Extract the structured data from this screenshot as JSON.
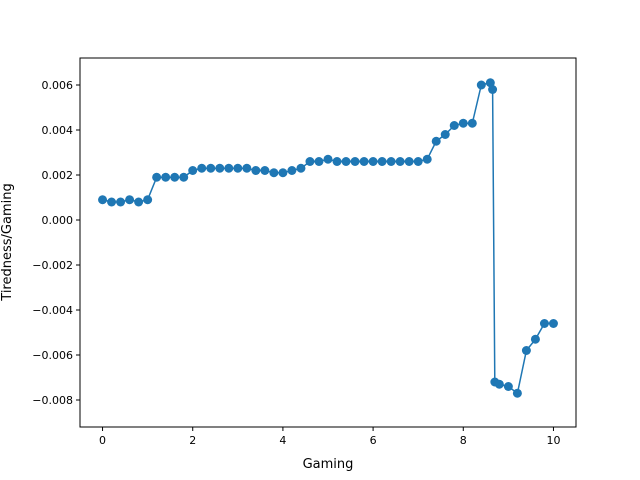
{
  "chart_data": {
    "type": "scatter",
    "title": "",
    "xlabel": "Gaming",
    "ylabel": "Tiredness/Gaming",
    "xlim": [
      -0.5,
      10.5
    ],
    "ylim": [
      -0.0092,
      0.0072
    ],
    "xticks": [
      0,
      2,
      4,
      6,
      8,
      10
    ],
    "xtick_labels": [
      "0",
      "2",
      "4",
      "6",
      "8",
      "10"
    ],
    "yticks": [
      -0.008,
      -0.006,
      -0.004,
      -0.002,
      0.0,
      0.002,
      0.004,
      0.006
    ],
    "ytick_labels": [
      "−0.008",
      "−0.006",
      "−0.004",
      "−0.002",
      "0.000",
      "0.002",
      "0.004",
      "0.006"
    ],
    "grid": false,
    "legend": "none",
    "color": "#1f77b4",
    "series": [
      {
        "x": [
          0.0,
          0.2,
          0.4,
          0.6,
          0.8,
          1.0,
          1.2,
          1.4,
          1.6,
          1.8,
          2.0,
          2.2,
          2.4,
          2.6,
          2.8,
          3.0,
          3.2,
          3.4,
          3.6,
          3.8,
          4.0,
          4.2,
          4.4,
          4.6,
          4.8,
          5.0,
          5.2,
          5.4,
          5.6,
          5.8,
          6.0,
          6.2,
          6.4,
          6.6,
          6.8,
          7.0,
          7.2,
          7.4,
          7.6,
          7.8,
          8.0,
          8.2,
          8.4,
          8.6,
          8.65,
          8.7,
          8.8,
          9.0,
          9.2,
          9.4,
          9.6,
          9.8,
          10.0
        ],
        "y": [
          0.0009,
          0.0008,
          0.0008,
          0.0009,
          0.0008,
          0.0009,
          0.0019,
          0.0019,
          0.0019,
          0.0019,
          0.0022,
          0.0023,
          0.0023,
          0.0023,
          0.0023,
          0.0023,
          0.0023,
          0.0022,
          0.0022,
          0.0021,
          0.0021,
          0.0022,
          0.0023,
          0.0026,
          0.0026,
          0.0027,
          0.0026,
          0.0026,
          0.0026,
          0.0026,
          0.0026,
          0.0026,
          0.0026,
          0.0026,
          0.0026,
          0.0026,
          0.0027,
          0.0035,
          0.0038,
          0.0042,
          0.0043,
          0.0043,
          0.006,
          0.0061,
          0.0058,
          -0.0072,
          -0.0073,
          -0.0074,
          -0.0077,
          -0.0058,
          -0.0053,
          -0.0046,
          -0.0046
        ]
      }
    ]
  }
}
